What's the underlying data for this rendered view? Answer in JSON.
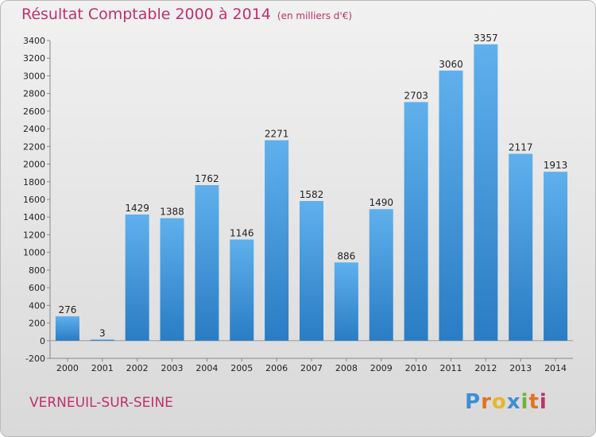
{
  "header": {
    "title": "Résultat Comptable 2000 à 2014",
    "subtitle": "(en milliers d'€)"
  },
  "footer": {
    "location": "VERNEUIL-SUR-SEINE",
    "logo_text": "Proxiti",
    "logo_letters": [
      "P",
      "r",
      "o",
      "x",
      "i",
      "t",
      "i"
    ],
    "logo_colors": [
      "#3c8fd6",
      "#e8701e",
      "#e8b720",
      "#3c8fd6",
      "#6fb23a",
      "#e8701e",
      "#c0306b"
    ]
  },
  "chart_data": {
    "type": "bar",
    "title": "Résultat Comptable 2000 à 2014",
    "subtitle": "(en milliers d'€)",
    "xlabel": "",
    "ylabel": "",
    "categories": [
      "2000",
      "2001",
      "2002",
      "2003",
      "2004",
      "2005",
      "2006",
      "2007",
      "2008",
      "2009",
      "2010",
      "2011",
      "2012",
      "2013",
      "2014"
    ],
    "values": [
      276,
      3,
      1429,
      1388,
      1762,
      1146,
      2271,
      1582,
      886,
      1490,
      2703,
      3060,
      3357,
      2117,
      1913
    ],
    "ylim": [
      -200,
      3400
    ],
    "yticks": [
      -200,
      0,
      200,
      400,
      600,
      800,
      1000,
      1200,
      1400,
      1600,
      1800,
      2000,
      2200,
      2400,
      2600,
      2800,
      3000,
      3200,
      3400
    ],
    "grid": false,
    "bar_color": "#3a8fd8"
  }
}
